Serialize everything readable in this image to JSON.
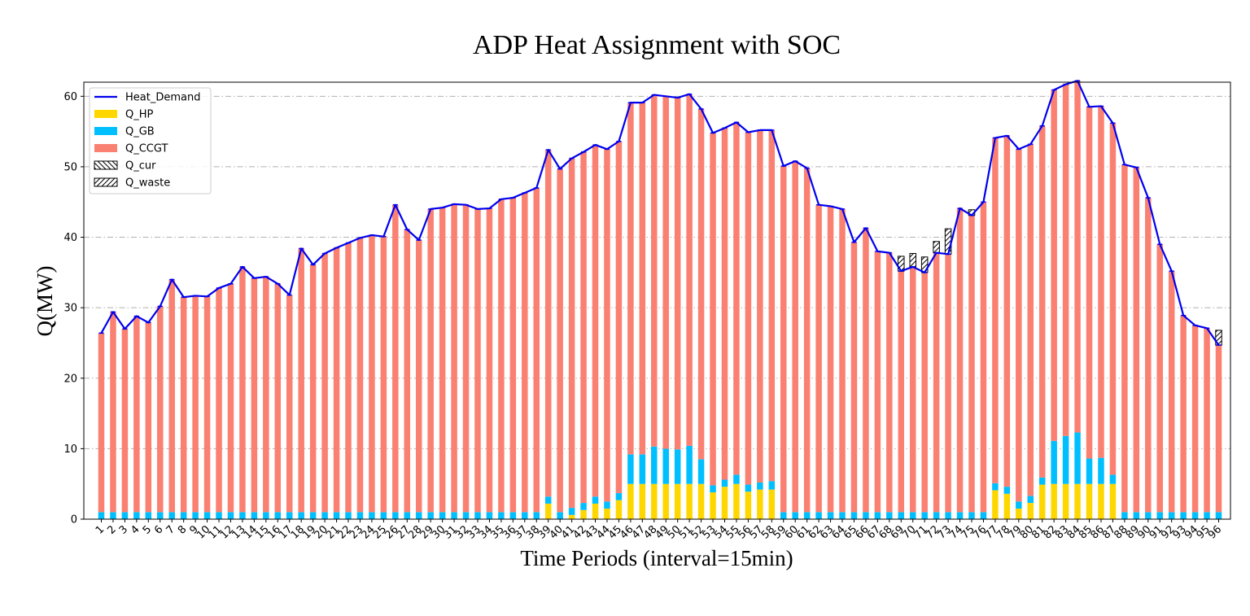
{
  "chart_data": {
    "type": "bar",
    "title": "ADP Heat Assignment with SOC",
    "xlabel": "Time Periods (interval=15min)",
    "ylabel": "Q(MW)",
    "ylim": [
      0,
      62
    ],
    "yticks": [
      0,
      10,
      20,
      30,
      40,
      50,
      60
    ],
    "grid": "horizontal dash-dot",
    "legend_position": "top-left",
    "stacked": true,
    "categories": [
      "1",
      "2",
      "3",
      "4",
      "5",
      "6",
      "7",
      "8",
      "9",
      "10",
      "11",
      "12",
      "13",
      "14",
      "15",
      "16",
      "17",
      "18",
      "19",
      "20",
      "21",
      "22",
      "23",
      "24",
      "25",
      "26",
      "27",
      "28",
      "29",
      "30",
      "31",
      "32",
      "33",
      "34",
      "35",
      "36",
      "37",
      "38",
      "39",
      "40",
      "41",
      "42",
      "43",
      "44",
      "45",
      "46",
      "47",
      "48",
      "49",
      "50",
      "51",
      "52",
      "53",
      "54",
      "55",
      "56",
      "57",
      "58",
      "59",
      "60",
      "61",
      "62",
      "63",
      "64",
      "65",
      "66",
      "67",
      "68",
      "69",
      "70",
      "71",
      "72",
      "73",
      "74",
      "75",
      "76",
      "77",
      "78",
      "79",
      "80",
      "81",
      "82",
      "83",
      "84",
      "85",
      "86",
      "87",
      "88",
      "89",
      "90",
      "91",
      "92",
      "93",
      "94",
      "95",
      "96"
    ],
    "series": [
      {
        "name": "Heat_Demand",
        "kind": "line",
        "color": "#0000ee",
        "values": [
          26.4,
          29.4,
          27.0,
          28.8,
          27.9,
          30.2,
          34.0,
          31.5,
          31.7,
          31.6,
          32.8,
          33.4,
          35.8,
          34.2,
          34.4,
          33.4,
          31.8,
          38.4,
          36.1,
          37.7,
          38.5,
          39.2,
          39.9,
          40.3,
          40.1,
          44.6,
          41.1,
          39.6,
          44.0,
          44.2,
          44.7,
          44.6,
          44.0,
          44.1,
          45.4,
          45.6,
          46.3,
          47.0,
          52.4,
          49.7,
          51.2,
          52.1,
          53.1,
          52.5,
          53.6,
          59.1,
          59.1,
          60.2,
          60.0,
          59.8,
          60.3,
          58.2,
          54.8,
          55.5,
          56.3,
          54.9,
          55.2,
          55.2,
          50.1,
          50.8,
          49.8,
          44.6,
          44.4,
          44.0,
          39.3,
          41.3,
          38.0,
          37.8,
          35.2,
          35.8,
          35.0,
          37.8,
          37.6,
          44.1,
          43.1,
          45.0,
          54.1,
          54.4,
          52.5,
          53.2,
          55.8,
          60.9,
          61.7,
          62.2,
          58.5,
          58.6,
          56.2,
          50.3,
          49.9,
          45.6,
          39.0,
          35.2,
          28.9,
          27.5,
          27.1,
          24.7
        ]
      },
      {
        "name": "Q_HP",
        "kind": "bar",
        "color": "#ffd700",
        "values": [
          0,
          0,
          0,
          0,
          0,
          0,
          0,
          0,
          0,
          0,
          0,
          0,
          0,
          0,
          0,
          0,
          0,
          0,
          0,
          0,
          0,
          0,
          0,
          0,
          0,
          0,
          0,
          0,
          0,
          0,
          0,
          0,
          0,
          0,
          0,
          0,
          0,
          0,
          2.2,
          0,
          0.6,
          1.3,
          2.2,
          1.5,
          2.7,
          5.0,
          5.0,
          5.0,
          5.0,
          5.0,
          5.0,
          5.0,
          3.8,
          4.6,
          5.0,
          3.9,
          4.2,
          4.2,
          0,
          0,
          0,
          0,
          0,
          0,
          0,
          0,
          0,
          0,
          0,
          0,
          0,
          0,
          0,
          0,
          0,
          0,
          4.1,
          3.6,
          1.5,
          2.3,
          4.9,
          5.0,
          5.0,
          5.0,
          5.0,
          5.0,
          5.0,
          0,
          0,
          0,
          0,
          0,
          0,
          0,
          0,
          0
        ]
      },
      {
        "name": "Q_GB",
        "kind": "bar",
        "color": "#00bfff",
        "values": [
          1.0,
          1.0,
          1.0,
          1.0,
          1.0,
          1.0,
          1.0,
          1.0,
          1.0,
          1.0,
          1.0,
          1.0,
          1.0,
          1.0,
          1.0,
          1.0,
          1.0,
          1.0,
          1.0,
          1.0,
          1.0,
          1.0,
          1.0,
          1.0,
          1.0,
          1.0,
          1.0,
          1.0,
          1.0,
          1.0,
          1.0,
          1.0,
          1.0,
          1.0,
          1.0,
          1.0,
          1.0,
          1.0,
          1.0,
          1.0,
          1.0,
          1.0,
          1.0,
          1.0,
          1.0,
          4.2,
          4.2,
          5.3,
          5.0,
          4.9,
          5.4,
          3.5,
          1.0,
          1.0,
          1.3,
          1.0,
          1.0,
          1.2,
          1.0,
          1.0,
          1.0,
          1.0,
          1.0,
          1.0,
          1.0,
          1.0,
          1.0,
          1.0,
          1.0,
          1.0,
          1.0,
          1.0,
          1.0,
          1.0,
          1.0,
          1.0,
          1.0,
          1.0,
          1.0,
          1.0,
          1.0,
          6.1,
          6.8,
          7.3,
          3.6,
          3.7,
          1.3,
          1.0,
          1.0,
          1.0,
          1.0,
          1.0,
          1.0,
          1.0,
          1.0,
          1.0
        ]
      },
      {
        "name": "Q_CCGT",
        "kind": "bar",
        "color": "#fa8072",
        "values": [
          25.4,
          28.4,
          26.0,
          27.8,
          26.9,
          29.2,
          33.0,
          30.5,
          30.7,
          30.6,
          31.8,
          32.4,
          34.8,
          33.2,
          33.4,
          32.4,
          30.8,
          37.4,
          35.1,
          36.7,
          37.5,
          38.2,
          38.9,
          39.3,
          39.1,
          43.6,
          40.1,
          38.6,
          43.0,
          43.2,
          43.7,
          43.6,
          43.0,
          43.1,
          44.4,
          44.6,
          45.3,
          46.0,
          49.2,
          48.7,
          49.6,
          49.8,
          49.9,
          50.0,
          49.9,
          49.9,
          49.9,
          49.9,
          50.0,
          49.9,
          49.9,
          49.7,
          50.0,
          49.9,
          50.0,
          50.0,
          50.0,
          49.8,
          49.1,
          49.8,
          48.8,
          43.6,
          43.4,
          43.0,
          38.3,
          40.3,
          37.0,
          36.8,
          34.2,
          34.8,
          34.0,
          36.8,
          36.6,
          43.1,
          42.1,
          44.0,
          49.0,
          49.8,
          50.0,
          49.9,
          49.9,
          49.8,
          49.9,
          49.9,
          49.9,
          49.9,
          49.9,
          49.3,
          48.9,
          44.6,
          38.0,
          34.2,
          27.9,
          26.5,
          26.1,
          23.7
        ]
      },
      {
        "name": "Q_cur",
        "kind": "hatch",
        "hatch": "backslash",
        "values": [
          0,
          0,
          0,
          0,
          0,
          0,
          0,
          0,
          0,
          0,
          0,
          0,
          0,
          0,
          0,
          0,
          0,
          0,
          0,
          0,
          0,
          0,
          0,
          0,
          0,
          0,
          0,
          0,
          0,
          0,
          0,
          0,
          0,
          0,
          0,
          0,
          0,
          0,
          0,
          0,
          0,
          0,
          0,
          0,
          0,
          0,
          0,
          0,
          0,
          0,
          0,
          0,
          0,
          0,
          0,
          0,
          0,
          0,
          0,
          0,
          0,
          0,
          0,
          0,
          0,
          0,
          0,
          0,
          0,
          0,
          0,
          0,
          0,
          0,
          0,
          0,
          0,
          0,
          0,
          0,
          0,
          0,
          0,
          0,
          0,
          0,
          0,
          0,
          0,
          0,
          0,
          0,
          0,
          0,
          0,
          0
        ]
      },
      {
        "name": "Q_waste",
        "kind": "hatch",
        "hatch": "slash",
        "values": [
          0,
          0,
          0,
          0,
          0,
          0,
          0,
          0,
          0,
          0,
          0,
          0,
          0,
          0,
          0,
          0,
          0,
          0,
          0,
          0,
          0,
          0,
          0,
          0,
          0,
          0,
          0,
          0,
          0,
          0,
          0,
          0,
          0,
          0,
          0,
          0,
          0,
          0,
          0,
          0,
          0,
          0,
          0,
          0,
          0,
          0,
          0,
          0,
          0,
          0,
          0,
          0,
          0,
          0,
          0,
          0,
          0,
          0,
          0,
          0,
          0,
          0,
          0,
          0,
          0,
          0,
          0,
          0,
          2.1,
          1.9,
          2.2,
          1.6,
          3.6,
          0,
          0.8,
          0,
          0,
          0,
          0,
          0,
          0,
          0,
          0,
          0,
          0,
          0,
          0,
          0,
          0,
          0,
          0,
          0,
          0,
          0,
          0,
          2.1
        ]
      }
    ]
  }
}
